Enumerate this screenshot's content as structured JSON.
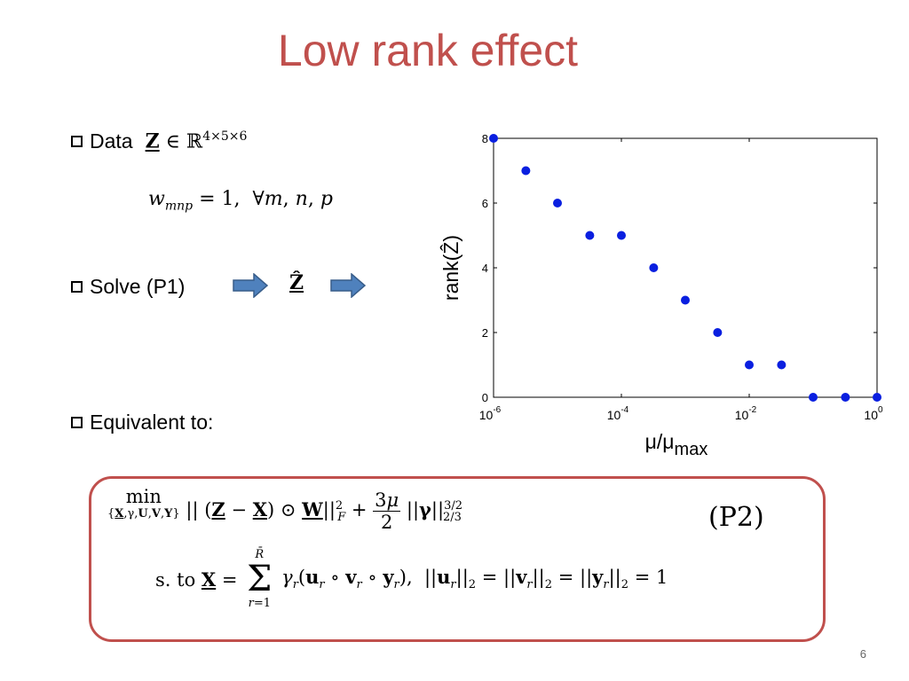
{
  "slide": {
    "title": "Low rank effect",
    "page_number": "6"
  },
  "bullets": {
    "data_label": "Data",
    "data_math": "Z ∈ ℝ^{4×5×6}",
    "weights_math": "w_mnp = 1, ∀m, n, p",
    "solve_label": "Solve (P1)",
    "result_symbol": "Ẑ",
    "equivalent_label": "Equivalent to:"
  },
  "problem": {
    "tag": "(P2)",
    "objective": "min over {X, γ, U, V, Y} of ||(Z − X) ⊙ W||²_F + (3μ/2)||γ||^{3/2}_{2/3}",
    "constraint": "s. to X = Σ_{r=1}^{R̄} γ_r(u_r ∘ v_r ∘ y_r), ||u_r||₂ = ||v_r||₂ = ||y_r||₂ = 1"
  },
  "chart_data": {
    "type": "scatter",
    "xscale": "log",
    "xlabel": "μ/μmax",
    "ylabel": "rank(Ẑ)",
    "xlim": [
      1e-06,
      1
    ],
    "ylim": [
      0,
      8
    ],
    "xticks": [
      1e-06,
      0.0001,
      0.01,
      1
    ],
    "xtick_labels": [
      "10^-6",
      "10^-4",
      "10^-2",
      "10^0"
    ],
    "yticks": [
      0,
      2,
      4,
      6,
      8
    ],
    "marker_color": "#0a1fe0",
    "points": [
      {
        "x": 1e-06,
        "y": 8
      },
      {
        "x": 3.2e-06,
        "y": 7
      },
      {
        "x": 1e-05,
        "y": 6
      },
      {
        "x": 3.2e-05,
        "y": 5
      },
      {
        "x": 0.0001,
        "y": 5
      },
      {
        "x": 0.00032,
        "y": 4
      },
      {
        "x": 0.001,
        "y": 3
      },
      {
        "x": 0.0032,
        "y": 2
      },
      {
        "x": 0.01,
        "y": 1
      },
      {
        "x": 0.032,
        "y": 1
      },
      {
        "x": 0.1,
        "y": 0
      },
      {
        "x": 0.32,
        "y": 0
      },
      {
        "x": 1,
        "y": 0
      }
    ]
  }
}
